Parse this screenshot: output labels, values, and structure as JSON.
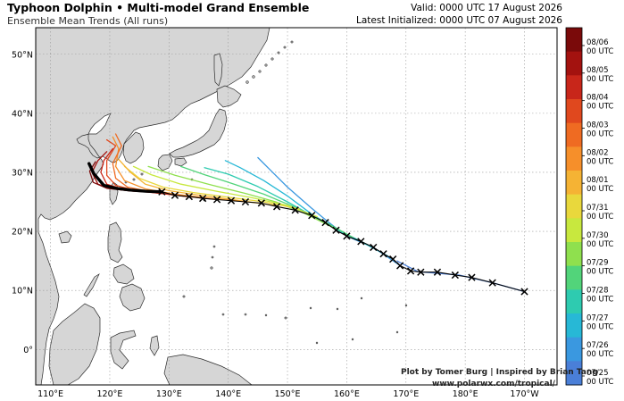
{
  "header": {
    "title": "Typhoon Dolphin • Multi-model Grand Ensemble",
    "subtitle": "Ensemble Mean Trends (All runs)",
    "valid": "Valid: 0000 UTC 17 August 2026",
    "latest": "Latest Initialized: 0000 UTC 07 August 2026"
  },
  "credits": {
    "line1": "Plot by Tomer Burg | Inspired by Brian Tang",
    "line2": "www.polarwx.com/tropical/"
  },
  "axes": {
    "lon_labels": [
      "110°E",
      "120°E",
      "130°E",
      "140°E",
      "150°E",
      "160°E",
      "170°E",
      "180°E",
      "170°W"
    ],
    "lon_values": [
      110,
      120,
      130,
      140,
      150,
      160,
      170,
      180,
      190
    ],
    "lat_labels": [
      "0°",
      "10°N",
      "20°N",
      "30°N",
      "40°N",
      "50°N"
    ],
    "lat_values": [
      0,
      10,
      20,
      30,
      40,
      50
    ],
    "lon_range": [
      107.5,
      195.5
    ],
    "lat_range": [
      -6,
      54.5
    ]
  },
  "colorbar": {
    "labels": [
      {
        "date": "08/06",
        "time": "00 UTC"
      },
      {
        "date": "08/05",
        "time": "00 UTC"
      },
      {
        "date": "08/04",
        "time": "00 UTC"
      },
      {
        "date": "08/03",
        "time": "00 UTC"
      },
      {
        "date": "08/02",
        "time": "00 UTC"
      },
      {
        "date": "08/01",
        "time": "00 UTC"
      },
      {
        "date": "07/31",
        "time": "00 UTC"
      },
      {
        "date": "07/30",
        "time": "00 UTC"
      },
      {
        "date": "07/29",
        "time": "00 UTC"
      },
      {
        "date": "07/28",
        "time": "00 UTC"
      },
      {
        "date": "07/27",
        "time": "00 UTC"
      },
      {
        "date": "07/26",
        "time": "00 UTC"
      },
      {
        "date": "07/25",
        "time": "00 UTC"
      }
    ],
    "colors": [
      "#7a0a0a",
      "#a3120f",
      "#c8261a",
      "#e0481e",
      "#ef6b22",
      "#f68f2a",
      "#f5b334",
      "#e9d83c",
      "#c8e83e",
      "#8fe04e",
      "#52d47a",
      "#2ecbb0",
      "#27b8d6",
      "#3a98e0",
      "#4a7fd8"
    ]
  },
  "observed_track": [
    {
      "lon": 190.0,
      "lat": 9.8
    },
    {
      "lon": 184.6,
      "lat": 11.3
    },
    {
      "lon": 181.1,
      "lat": 12.2
    },
    {
      "lon": 178.3,
      "lat": 12.6
    },
    {
      "lon": 175.3,
      "lat": 13.1
    },
    {
      "lon": 172.5,
      "lat": 13.1
    },
    {
      "lon": 170.8,
      "lat": 13.3
    },
    {
      "lon": 169.0,
      "lat": 14.2
    },
    {
      "lon": 167.8,
      "lat": 15.3
    },
    {
      "lon": 166.2,
      "lat": 16.2
    },
    {
      "lon": 164.5,
      "lat": 17.3
    },
    {
      "lon": 162.4,
      "lat": 18.3
    },
    {
      "lon": 160.0,
      "lat": 19.2
    },
    {
      "lon": 158.2,
      "lat": 20.2
    },
    {
      "lon": 156.4,
      "lat": 21.5
    },
    {
      "lon": 154.1,
      "lat": 22.7
    },
    {
      "lon": 151.3,
      "lat": 23.6
    },
    {
      "lon": 148.2,
      "lat": 24.2
    },
    {
      "lon": 145.6,
      "lat": 24.8
    },
    {
      "lon": 142.9,
      "lat": 25.0
    },
    {
      "lon": 140.5,
      "lat": 25.2
    },
    {
      "lon": 138.1,
      "lat": 25.4
    },
    {
      "lon": 135.7,
      "lat": 25.6
    },
    {
      "lon": 133.4,
      "lat": 25.9
    },
    {
      "lon": 131.0,
      "lat": 26.1
    },
    {
      "lon": 128.8,
      "lat": 26.7
    }
  ],
  "forecast_track": [
    {
      "lon": 128.8,
      "lat": 26.7
    },
    {
      "lon": 126.0,
      "lat": 26.8
    },
    {
      "lon": 123.5,
      "lat": 27.0
    },
    {
      "lon": 121.0,
      "lat": 27.3
    },
    {
      "lon": 119.0,
      "lat": 27.8
    },
    {
      "lon": 117.3,
      "lat": 29.8
    },
    {
      "lon": 116.5,
      "lat": 31.5
    }
  ],
  "ensemble_tracks": [
    {
      "color_index": 14,
      "points": [
        {
          "lon": 190.0,
          "lat": 9.8
        },
        {
          "lon": 184.6,
          "lat": 11.3
        },
        {
          "lon": 179.0,
          "lat": 12.6
        },
        {
          "lon": 172.0,
          "lat": 13.2
        },
        {
          "lon": 168.5,
          "lat": 15.0
        }
      ]
    },
    {
      "color_index": 13,
      "points": [
        {
          "lon": 169.0,
          "lat": 14.2
        },
        {
          "lon": 164.5,
          "lat": 17.3
        },
        {
          "lon": 160.0,
          "lat": 19.2
        },
        {
          "lon": 157.0,
          "lat": 21.5
        },
        {
          "lon": 154.0,
          "lat": 24.0
        },
        {
          "lon": 150.0,
          "lat": 27.5
        },
        {
          "lon": 147.0,
          "lat": 30.5
        },
        {
          "lon": 145.0,
          "lat": 32.5
        }
      ]
    },
    {
      "color_index": 12,
      "points": [
        {
          "lon": 167.0,
          "lat": 15.8
        },
        {
          "lon": 162.0,
          "lat": 18.5
        },
        {
          "lon": 158.0,
          "lat": 20.5
        },
        {
          "lon": 154.0,
          "lat": 23.0
        },
        {
          "lon": 150.0,
          "lat": 26.0
        },
        {
          "lon": 146.0,
          "lat": 28.6
        },
        {
          "lon": 142.0,
          "lat": 30.8
        },
        {
          "lon": 139.5,
          "lat": 32.0
        }
      ]
    },
    {
      "color_index": 11,
      "points": [
        {
          "lon": 164.0,
          "lat": 17.5
        },
        {
          "lon": 160.0,
          "lat": 19.5
        },
        {
          "lon": 155.0,
          "lat": 22.2
        },
        {
          "lon": 150.0,
          "lat": 25.0
        },
        {
          "lon": 145.0,
          "lat": 27.6
        },
        {
          "lon": 140.0,
          "lat": 29.7
        },
        {
          "lon": 136.0,
          "lat": 30.8
        }
      ]
    },
    {
      "color_index": 10,
      "points": [
        {
          "lon": 161.0,
          "lat": 19.0
        },
        {
          "lon": 156.0,
          "lat": 21.8
        },
        {
          "lon": 151.0,
          "lat": 24.2
        },
        {
          "lon": 146.0,
          "lat": 26.3
        },
        {
          "lon": 141.0,
          "lat": 28.0
        },
        {
          "lon": 136.0,
          "lat": 29.6
        },
        {
          "lon": 132.0,
          "lat": 31.0
        }
      ]
    },
    {
      "color_index": 9,
      "points": [
        {
          "lon": 158.0,
          "lat": 20.5
        },
        {
          "lon": 153.0,
          "lat": 23.0
        },
        {
          "lon": 148.0,
          "lat": 25.0
        },
        {
          "lon": 143.0,
          "lat": 26.4
        },
        {
          "lon": 137.0,
          "lat": 27.9
        },
        {
          "lon": 131.0,
          "lat": 29.5
        },
        {
          "lon": 126.5,
          "lat": 31.0
        }
      ]
    },
    {
      "color_index": 8,
      "points": [
        {
          "lon": 155.0,
          "lat": 22.5
        },
        {
          "lon": 150.0,
          "lat": 24.4
        },
        {
          "lon": 144.0,
          "lat": 25.7
        },
        {
          "lon": 138.0,
          "lat": 26.8
        },
        {
          "lon": 132.0,
          "lat": 28.0
        },
        {
          "lon": 127.0,
          "lat": 29.6
        },
        {
          "lon": 124.0,
          "lat": 31.0
        }
      ]
    },
    {
      "color_index": 7,
      "points": [
        {
          "lon": 152.0,
          "lat": 23.8
        },
        {
          "lon": 146.0,
          "lat": 25.0
        },
        {
          "lon": 140.0,
          "lat": 25.8
        },
        {
          "lon": 134.0,
          "lat": 26.6
        },
        {
          "lon": 129.0,
          "lat": 27.5
        },
        {
          "lon": 125.0,
          "lat": 29.0
        },
        {
          "lon": 122.5,
          "lat": 31.0
        }
      ]
    },
    {
      "color_index": 6,
      "points": [
        {
          "lon": 148.0,
          "lat": 24.4
        },
        {
          "lon": 142.0,
          "lat": 25.2
        },
        {
          "lon": 136.0,
          "lat": 26.0
        },
        {
          "lon": 130.0,
          "lat": 26.9
        },
        {
          "lon": 126.0,
          "lat": 28.0
        },
        {
          "lon": 123.5,
          "lat": 30.0
        },
        {
          "lon": 121.5,
          "lat": 32.2
        }
      ]
    },
    {
      "color_index": 5,
      "points": [
        {
          "lon": 143.0,
          "lat": 25.0
        },
        {
          "lon": 137.0,
          "lat": 25.6
        },
        {
          "lon": 131.0,
          "lat": 26.3
        },
        {
          "lon": 126.0,
          "lat": 27.2
        },
        {
          "lon": 122.5,
          "lat": 28.6
        },
        {
          "lon": 121.0,
          "lat": 31.0
        },
        {
          "lon": 121.5,
          "lat": 34.0
        },
        {
          "lon": 120.5,
          "lat": 36.0
        }
      ]
    },
    {
      "color_index": 4,
      "points": [
        {
          "lon": 138.0,
          "lat": 25.4
        },
        {
          "lon": 132.0,
          "lat": 26.0
        },
        {
          "lon": 127.0,
          "lat": 26.7
        },
        {
          "lon": 123.0,
          "lat": 27.5
        },
        {
          "lon": 121.0,
          "lat": 29.0
        },
        {
          "lon": 120.5,
          "lat": 31.5
        },
        {
          "lon": 122.0,
          "lat": 34.5
        },
        {
          "lon": 121.0,
          "lat": 36.5
        }
      ]
    },
    {
      "color_index": 3,
      "points": [
        {
          "lon": 133.0,
          "lat": 25.9
        },
        {
          "lon": 128.0,
          "lat": 26.5
        },
        {
          "lon": 124.0,
          "lat": 27.0
        },
        {
          "lon": 121.0,
          "lat": 27.8
        },
        {
          "lon": 119.5,
          "lat": 29.5
        },
        {
          "lon": 119.5,
          "lat": 32.0
        },
        {
          "lon": 121.0,
          "lat": 34.5
        },
        {
          "lon": 119.5,
          "lat": 35.5
        }
      ]
    },
    {
      "color_index": 2,
      "points": [
        {
          "lon": 130.0,
          "lat": 26.3
        },
        {
          "lon": 126.0,
          "lat": 26.7
        },
        {
          "lon": 122.0,
          "lat": 27.2
        },
        {
          "lon": 119.5,
          "lat": 28.0
        },
        {
          "lon": 118.5,
          "lat": 30.0
        },
        {
          "lon": 119.0,
          "lat": 32.0
        },
        {
          "lon": 120.5,
          "lat": 34.0
        }
      ]
    },
    {
      "color_index": 1,
      "points": [
        {
          "lon": 128.0,
          "lat": 26.6
        },
        {
          "lon": 124.0,
          "lat": 26.8
        },
        {
          "lon": 120.5,
          "lat": 27.2
        },
        {
          "lon": 118.0,
          "lat": 28.0
        },
        {
          "lon": 117.0,
          "lat": 30.0
        },
        {
          "lon": 118.0,
          "lat": 32.0
        },
        {
          "lon": 119.5,
          "lat": 33.5
        }
      ]
    },
    {
      "color_index": 0,
      "points": [
        {
          "lon": 127.0,
          "lat": 26.7
        },
        {
          "lon": 123.0,
          "lat": 26.9
        },
        {
          "lon": 119.5,
          "lat": 27.3
        },
        {
          "lon": 117.2,
          "lat": 28.3
        },
        {
          "lon": 116.6,
          "lat": 30.2
        },
        {
          "lon": 117.6,
          "lat": 31.8
        }
      ]
    }
  ]
}
